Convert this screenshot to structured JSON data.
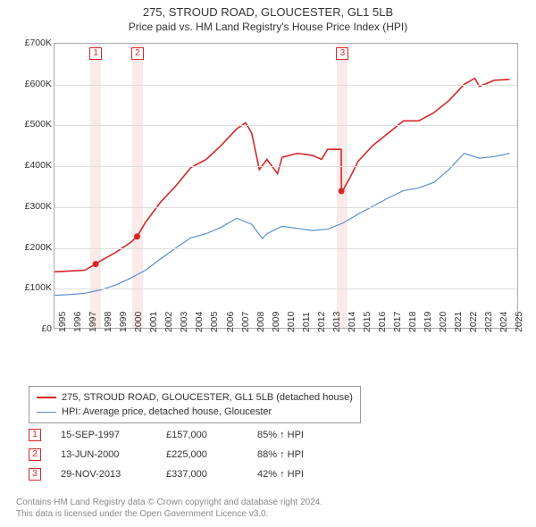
{
  "title_main": "275, STROUD ROAD, GLOUCESTER, GL1 5LB",
  "title_sub": "Price paid vs. HM Land Registry's House Price Index (HPI)",
  "chart": {
    "type": "line",
    "background_color": "#ffffff",
    "grid_color": "#dddddd",
    "plot_border_color": "#aaaaaa",
    "x_years": [
      1995,
      1996,
      1997,
      1998,
      1999,
      2000,
      2001,
      2002,
      2003,
      2004,
      2005,
      2006,
      2007,
      2008,
      2009,
      2010,
      2011,
      2012,
      2013,
      2014,
      2015,
      2016,
      2017,
      2018,
      2019,
      2020,
      2021,
      2022,
      2023,
      2024,
      2025
    ],
    "xlim": [
      1995,
      2025.5
    ],
    "ylim": [
      0,
      700000
    ],
    "ytick_step": 100000,
    "ytick_labels": [
      "£0",
      "£100K",
      "£200K",
      "£300K",
      "£400K",
      "£500K",
      "£600K",
      "£700K"
    ],
    "series_red": {
      "label": "275, STROUD ROAD, GLOUCESTER, GL1 5LB (detached house)",
      "color": "#d62728",
      "data": [
        [
          1995,
          138000
        ],
        [
          1996,
          140000
        ],
        [
          1997,
          142000
        ],
        [
          1997.71,
          157000
        ],
        [
          1998,
          164000
        ],
        [
          1999,
          185000
        ],
        [
          2000,
          210000
        ],
        [
          2000.45,
          225000
        ],
        [
          2001,
          260000
        ],
        [
          2002,
          310000
        ],
        [
          2003,
          350000
        ],
        [
          2004,
          395000
        ],
        [
          2005,
          415000
        ],
        [
          2006,
          450000
        ],
        [
          2007,
          490000
        ],
        [
          2007.6,
          505000
        ],
        [
          2008,
          480000
        ],
        [
          2008.5,
          390000
        ],
        [
          2009,
          415000
        ],
        [
          2009.7,
          380000
        ],
        [
          2010,
          420000
        ],
        [
          2011,
          430000
        ],
        [
          2012,
          425000
        ],
        [
          2012.6,
          415000
        ],
        [
          2013,
          440000
        ],
        [
          2013.9,
          440000
        ],
        [
          2013.91,
          337000
        ],
        [
          2014,
          338000
        ],
        [
          2014.5,
          372000
        ],
        [
          2015,
          410000
        ],
        [
          2016,
          450000
        ],
        [
          2017,
          480000
        ],
        [
          2018,
          510000
        ],
        [
          2019,
          510000
        ],
        [
          2020,
          530000
        ],
        [
          2021,
          560000
        ],
        [
          2022,
          600000
        ],
        [
          2022.7,
          615000
        ],
        [
          2023,
          595000
        ],
        [
          2024,
          610000
        ],
        [
          2025,
          612000
        ]
      ]
    },
    "series_blue": {
      "label": "HPI: Average price, detached house, Gloucester",
      "color": "#5a8fcf",
      "data": [
        [
          1995,
          80000
        ],
        [
          1996,
          82000
        ],
        [
          1997,
          85000
        ],
        [
          1998,
          93000
        ],
        [
          1999,
          105000
        ],
        [
          2000,
          122000
        ],
        [
          2001,
          142000
        ],
        [
          2002,
          170000
        ],
        [
          2003,
          197000
        ],
        [
          2004,
          222000
        ],
        [
          2005,
          232000
        ],
        [
          2006,
          248000
        ],
        [
          2007,
          270000
        ],
        [
          2008,
          255000
        ],
        [
          2008.7,
          220000
        ],
        [
          2009,
          232000
        ],
        [
          2010,
          250000
        ],
        [
          2011,
          245000
        ],
        [
          2012,
          240000
        ],
        [
          2013,
          243000
        ],
        [
          2014,
          258000
        ],
        [
          2015,
          280000
        ],
        [
          2016,
          300000
        ],
        [
          2017,
          320000
        ],
        [
          2018,
          338000
        ],
        [
          2019,
          345000
        ],
        [
          2020,
          358000
        ],
        [
          2021,
          390000
        ],
        [
          2022,
          430000
        ],
        [
          2023,
          418000
        ],
        [
          2024,
          422000
        ],
        [
          2025,
          430000
        ]
      ]
    },
    "event_shade_color": "#fbeaea",
    "events": [
      {
        "n": "1",
        "year": 1997.71,
        "date": "15-SEP-1997",
        "price": "£157,000",
        "pct": "85% ↑ HPI",
        "y": 157000
      },
      {
        "n": "2",
        "year": 2000.45,
        "date": "13-JUN-2000",
        "price": "£225,000",
        "pct": "88% ↑ HPI",
        "y": 225000
      },
      {
        "n": "3",
        "year": 2013.91,
        "date": "29-NOV-2013",
        "price": "£337,000",
        "pct": "42% ↑ HPI",
        "y": 337000
      }
    ]
  },
  "legend": {
    "row1": "275, STROUD ROAD, GLOUCESTER, GL1 5LB (detached house)",
    "row2": "HPI: Average price, detached house, Gloucester"
  },
  "footer_line1": "Contains HM Land Registry data © Crown copyright and database right 2024.",
  "footer_line2": "This data is licensed under the Open Government Licence v3.0."
}
